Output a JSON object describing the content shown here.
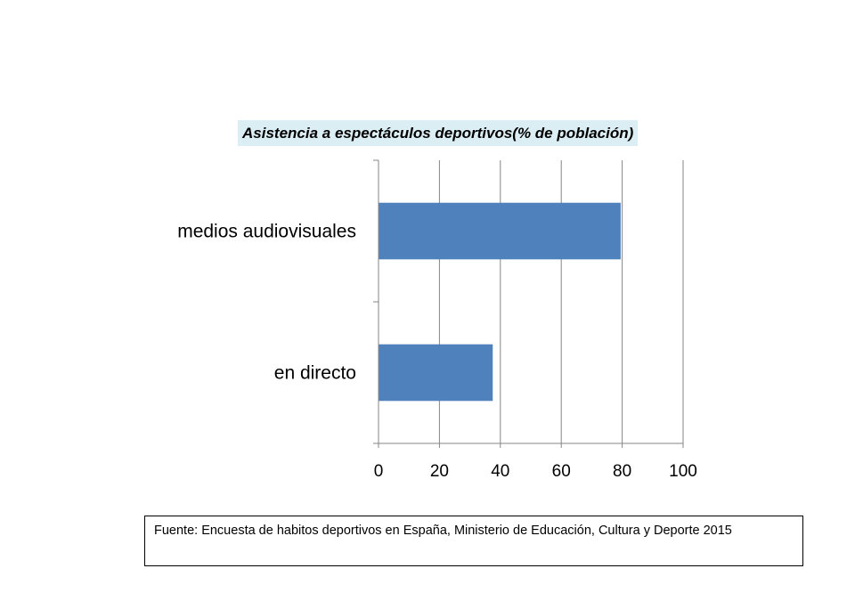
{
  "chart_data": {
    "type": "bar",
    "orientation": "horizontal",
    "title": "Asistencia a espectáculos deportivos(% de población)",
    "categories": [
      "medios audiovisuales",
      "en directo"
    ],
    "values": [
      79.5,
      37.5
    ],
    "xlim": [
      0,
      100
    ],
    "xticks": [
      "0",
      "20",
      "40",
      "60",
      "80",
      "100"
    ],
    "grid": "vertical",
    "legend": "none",
    "bar_color": "#4f81bd",
    "grid_color": "#868686"
  },
  "source": {
    "text": "Fuente: Encuesta de habitos  deportivos en España, Ministerio de Educación, Cultura y Deporte 2015"
  }
}
